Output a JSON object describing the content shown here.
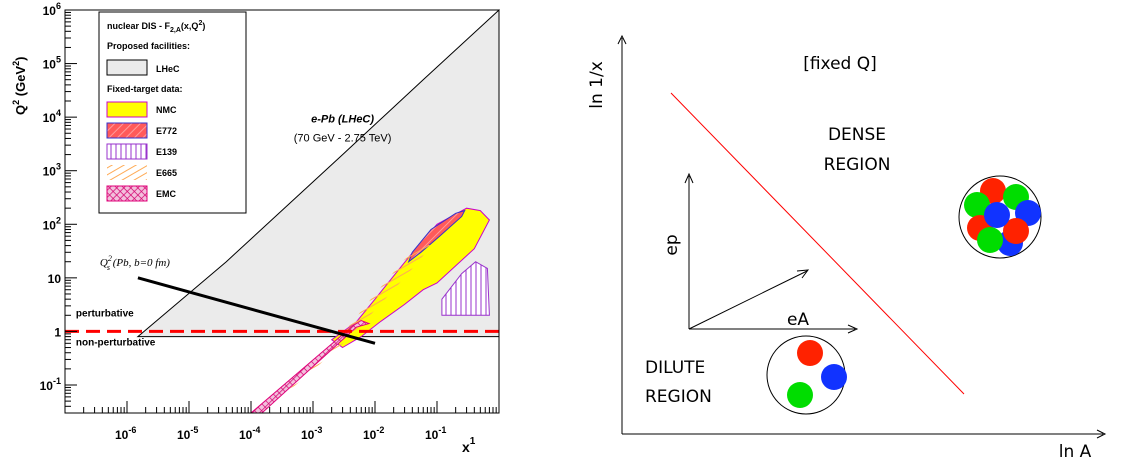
{
  "chart_data": [
    {
      "type": "area",
      "xscale": "log",
      "yscale": "log",
      "xlim": [
        1e-07,
        1
      ],
      "ylim": [
        0.03,
        1000000
      ],
      "xlabel": "x",
      "xlabel_sup": "1",
      "ylabel": "Q",
      "ylabel_sup": "2",
      "ylabel_unit_open": " (GeV",
      "ylabel_unit_sup": "2",
      "ylabel_unit_close": ")",
      "x_ticks": [
        {
          "value": 1e-06,
          "base": "10",
          "exp": "-6"
        },
        {
          "value": 1e-05,
          "base": "10",
          "exp": "-5"
        },
        {
          "value": 0.0001,
          "base": "10",
          "exp": "-4"
        },
        {
          "value": 0.001,
          "base": "10",
          "exp": "-3"
        },
        {
          "value": 0.01,
          "base": "10",
          "exp": "-2"
        },
        {
          "value": 0.1,
          "base": "10",
          "exp": "-1"
        }
      ],
      "y_ticks": [
        {
          "value": 0.1,
          "base": "10",
          "exp": "-1"
        },
        {
          "value": 1,
          "base": "1",
          "exp": ""
        },
        {
          "value": 10,
          "base": "10",
          "exp": ""
        },
        {
          "value": 100,
          "base": "10",
          "exp": "2"
        },
        {
          "value": 1000,
          "base": "10",
          "exp": "3"
        },
        {
          "value": 10000,
          "base": "10",
          "exp": "4"
        },
        {
          "value": 100000,
          "base": "10",
          "exp": "5"
        },
        {
          "value": 1000000,
          "base": "10",
          "exp": "6"
        }
      ],
      "legend": {
        "placement": "top-left",
        "title_main": "nuclear DIS - F",
        "title_sub": "2,A",
        "title_args": "(x,Q",
        "title_sup": "2",
        "title_close": ")",
        "proposed_heading": "Proposed facilities:",
        "fixed_heading": "Fixed-target data:",
        "entries": [
          {
            "label": "LHeC",
            "color": "#ebebeb",
            "pattern": "solid-gray"
          },
          {
            "label": "NMC",
            "color": "#ffff00",
            "pattern": "solid-yellow"
          },
          {
            "label": "E772",
            "color": "#ff4444",
            "pattern": "hatch-red"
          },
          {
            "label": "E139",
            "color": "#9933cc",
            "pattern": "vhatch-purple"
          },
          {
            "label": "E665",
            "color": "#ffaa55",
            "pattern": "hatch-orange"
          },
          {
            "label": "EMC",
            "color": "#e0007a",
            "pattern": "cross-magenta"
          }
        ]
      },
      "regions": [
        {
          "name": "LHeC",
          "fill": "#ebebeb",
          "points": [
            [
              1.5e-06,
              0.8
            ],
            [
              1,
              0.8
            ],
            [
              1,
              1000000
            ],
            [
              0.06,
              50000
            ],
            [
              0.003,
              2000
            ],
            [
              4e-05,
              20
            ]
          ]
        },
        {
          "name": "NMC",
          "fill": "#ffff00",
          "points": [
            [
              0.003,
              0.5
            ],
            [
              0.006,
              0.8
            ],
            [
              0.012,
              1.5
            ],
            [
              0.03,
              3.2
            ],
            [
              0.06,
              6
            ],
            [
              0.1,
              8
            ],
            [
              0.4,
              35
            ],
            [
              0.7,
              120
            ],
            [
              0.5,
              180
            ],
            [
              0.3,
              200
            ],
            [
              0.1,
              100
            ],
            [
              0.05,
              40
            ],
            [
              0.025,
              15
            ],
            [
              0.01,
              4
            ],
            [
              0.005,
              1.5
            ],
            [
              0.002,
              0.7
            ]
          ]
        },
        {
          "name": "E772",
          "fill": "#ff4444",
          "points": [
            [
              0.035,
              20
            ],
            [
              0.055,
              30
            ],
            [
              0.11,
              60
            ],
            [
              0.25,
              140
            ],
            [
              0.28,
              180
            ],
            [
              0.2,
              160
            ],
            [
              0.08,
              80
            ],
            [
              0.04,
              30
            ]
          ]
        },
        {
          "name": "E139",
          "fill": "#9933cc",
          "points": [
            [
              0.12,
              2
            ],
            [
              0.7,
              2
            ],
            [
              0.65,
              15
            ],
            [
              0.42,
              20
            ],
            [
              0.25,
              12
            ],
            [
              0.12,
              4
            ]
          ]
        },
        {
          "name": "E665",
          "fill": "#ffaa55",
          "points": [
            [
              0.0001,
              0.03
            ],
            [
              0.0002,
              0.04
            ],
            [
              0.0008,
              0.15
            ],
            [
              0.004,
              0.8
            ],
            [
              0.02,
              6
            ],
            [
              0.05,
              20
            ],
            [
              0.08,
              40
            ],
            [
              0.06,
              45
            ],
            [
              0.03,
              22
            ],
            [
              0.01,
              5
            ],
            [
              0.002,
              0.5
            ],
            [
              0.0004,
              0.08
            ]
          ]
        },
        {
          "name": "EMC",
          "fill": "#e0007a",
          "points": [
            [
              0.0001,
              0.03
            ],
            [
              0.00015,
              0.03
            ],
            [
              0.005,
              1.2
            ],
            [
              0.008,
              1.4
            ],
            [
              0.006,
              1.6
            ],
            [
              0.0045,
              1.3
            ]
          ]
        }
      ],
      "saturation_line": {
        "label": "Q",
        "label_sub": "s",
        "label_sup": "2",
        "label_rest": " (Pb, b=0 fm)",
        "points": [
          [
            1.5e-06,
            10
          ],
          [
            0.01,
            0.6
          ]
        ]
      },
      "boundary_line": {
        "y": 1,
        "color": "#ff0000",
        "style": "dashed"
      },
      "annotations": [
        {
          "key": "lhec_title",
          "text": "e-Pb (LHeC)",
          "x": 0.003,
          "y": 8000
        },
        {
          "key": "lhec_energy",
          "text": "(70 GeV - 2.75 TeV)",
          "x": 0.003,
          "y": 3500
        },
        {
          "key": "perturbative",
          "text": "perturbative",
          "x": 1.5e-07,
          "y": 1.9
        },
        {
          "key": "non_perturbative",
          "text": "non-perturbative",
          "x": 1.5e-07,
          "y": 0.55
        }
      ]
    },
    {
      "type": "diagram",
      "x_axis_label": "ln A",
      "y_axis_label": "ln 1/x",
      "condition_label": "[fixed Q]",
      "dense_label_line1": "DENSE",
      "dense_label_line2": "REGION",
      "dilute_label_line1": "DILUTE",
      "dilute_label_line2": "REGION",
      "ep_label": "ep",
      "ea_label": "eA",
      "boundary_color": "#ff0000",
      "nucleon_colors": [
        "#ff2200",
        "#00dd00",
        "#1133ff"
      ]
    }
  ]
}
